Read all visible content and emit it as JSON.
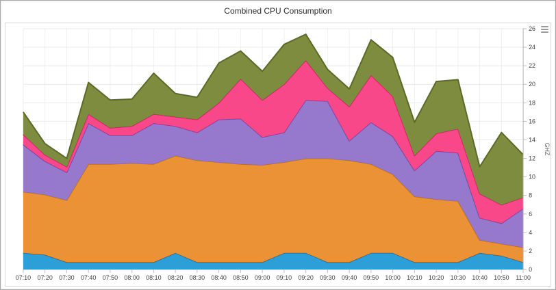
{
  "icons": {
    "export_menu": "hamburger-menu-icon"
  },
  "chart_data": {
    "type": "area",
    "stacked": true,
    "title": "Combined CPU Consumption",
    "xlabel": "",
    "ylabel": "GHZ",
    "ylim": [
      0,
      26
    ],
    "y_ticks": [
      0,
      2,
      4,
      6,
      8,
      10,
      12,
      14,
      16,
      18,
      20,
      22,
      24,
      26
    ],
    "grid": true,
    "legend_position": "none",
    "categories": [
      "07:10",
      "07:20",
      "07:30",
      "07:40",
      "07:50",
      "08:00",
      "08:10",
      "08:20",
      "08:30",
      "08:40",
      "08:50",
      "09:00",
      "09:10",
      "09:20",
      "09:30",
      "09:40",
      "09:50",
      "10:00",
      "10:10",
      "10:20",
      "10:30",
      "10:40",
      "10:50",
      "11:00"
    ],
    "series": [
      {
        "name": "blue",
        "color": "#2d9fd8",
        "stroke": "#1579b5",
        "values": [
          1.8,
          1.6,
          0.8,
          0.8,
          0.8,
          0.8,
          0.8,
          1.8,
          0.8,
          0.8,
          0.8,
          0.8,
          1.8,
          1.8,
          0.8,
          0.8,
          1.8,
          1.8,
          0.8,
          0.8,
          0.8,
          1.8,
          1.5,
          0.8
        ]
      },
      {
        "name": "orange",
        "color": "#ec9236",
        "stroke": "#bf6f15",
        "values": [
          6.6,
          6.5,
          6.7,
          10.6,
          10.6,
          10.7,
          10.6,
          10.5,
          11.0,
          10.8,
          10.6,
          10.5,
          9.8,
          10.2,
          11.2,
          11.0,
          9.6,
          8.5,
          7.1,
          6.8,
          6.6,
          1.4,
          1.3,
          1.6
        ]
      },
      {
        "name": "purple",
        "color": "#9678cd",
        "stroke": "#6e4cab",
        "values": [
          5.1,
          3.6,
          3.0,
          4.4,
          3.1,
          3.0,
          4.4,
          3.2,
          3.0,
          4.6,
          4.9,
          3.0,
          3.2,
          6.3,
          6.2,
          2.1,
          4.5,
          4.1,
          2.8,
          5.2,
          5.2,
          2.4,
          2.2,
          4.2
        ]
      },
      {
        "name": "pink",
        "color": "#f9488a",
        "stroke": "#d7216a",
        "values": [
          1.1,
          0.7,
          0.6,
          1.0,
          0.8,
          1.0,
          1.0,
          1.0,
          1.4,
          1.8,
          4.3,
          4.0,
          5.2,
          4.3,
          1.4,
          3.7,
          5.1,
          4.3,
          1.6,
          1.9,
          2.6,
          2.6,
          2.0,
          1.2
        ]
      },
      {
        "name": "olive",
        "color": "#7e8c3f",
        "stroke": "#5c6a23",
        "values": [
          2.4,
          1.2,
          0.9,
          3.4,
          3.0,
          2.9,
          4.4,
          2.5,
          2.4,
          4.3,
          3.0,
          3.1,
          4.3,
          2.8,
          2.0,
          1.9,
          3.8,
          4.2,
          3.6,
          5.6,
          5.3,
          2.9,
          7.8,
          4.6
        ]
      }
    ]
  }
}
